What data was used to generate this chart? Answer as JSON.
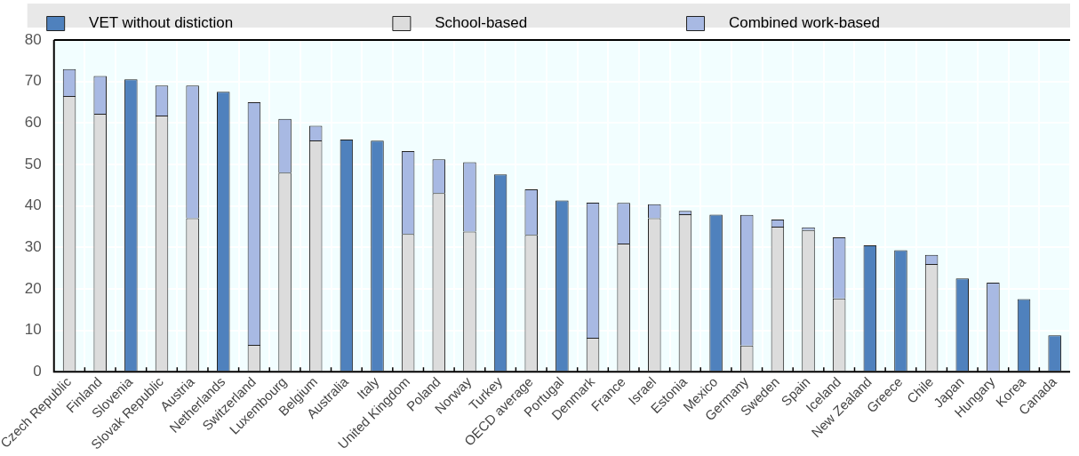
{
  "chart_data": {
    "type": "bar",
    "stacked": true,
    "categories": [
      "Czech Republic",
      "Finland",
      "Slovenia",
      "Slovak Republic",
      "Austria",
      "Netherlands",
      "Switzerland",
      "Luxembourg",
      "Belgium",
      "Australia",
      "Italy",
      "United Kingdom",
      "Poland",
      "Norway",
      "Turkey",
      "OECD average",
      "Portugal",
      "Denmark",
      "France",
      "Israel",
      "Estonia",
      "Mexico",
      "Germany",
      "Sweden",
      "Spain",
      "Iceland",
      "New Zealand",
      "Greece",
      "Chile",
      "Japan",
      "Hungary",
      "Korea",
      "Canada"
    ],
    "series": [
      {
        "name": "VET without distiction",
        "color": "#4f81bd",
        "values": [
          null,
          null,
          70.5,
          null,
          null,
          67.5,
          null,
          null,
          null,
          56,
          55.7,
          null,
          null,
          null,
          47.6,
          null,
          41.3,
          null,
          null,
          null,
          null,
          37.9,
          null,
          null,
          null,
          null,
          30.5,
          29.3,
          null,
          22.5,
          null,
          17.5,
          8.8
        ]
      },
      {
        "name": "School-based",
        "color": "#dcdcdc",
        "values": [
          66.5,
          62.2,
          null,
          61.8,
          37,
          null,
          6.5,
          48,
          55.8,
          null,
          null,
          33.2,
          43.1,
          33.8,
          null,
          33,
          null,
          8.2,
          30.9,
          37,
          38,
          null,
          6.3,
          35,
          34.2,
          17.7,
          null,
          null,
          26,
          null,
          null,
          null,
          null
        ]
      },
      {
        "name": "Combined work-based",
        "color": "#a8b9e3",
        "values": [
          6.5,
          9.1,
          null,
          7.2,
          32,
          null,
          58.5,
          13,
          3.5,
          null,
          null,
          20,
          8.1,
          16.7,
          null,
          11,
          null,
          32.6,
          9.8,
          3.4,
          0.8,
          null,
          31.5,
          1.7,
          0.6,
          14.7,
          null,
          null,
          2.2,
          null,
          21.5,
          null,
          null
        ]
      }
    ],
    "ylim": [
      0,
      80
    ],
    "yticks": [
      0,
      10,
      20,
      30,
      40,
      50,
      60,
      70,
      80
    ],
    "grid": true,
    "legend": "top"
  }
}
